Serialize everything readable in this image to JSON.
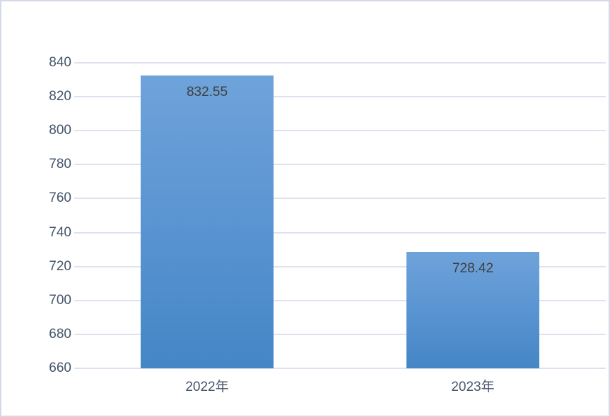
{
  "window": {
    "background_color": "#ffffff",
    "border_color": "#d3dae6"
  },
  "colors": {
    "bar_gradient_top": "#6fa3da",
    "bar_gradient_mid": "#5a94d2",
    "bar_gradient_bottom": "#4586c6",
    "gridline": "#dde2ee",
    "axis_label": "#44546a",
    "value_label": "#404040"
  },
  "chart_data": {
    "type": "bar",
    "categories": [
      "2022年",
      "2023年"
    ],
    "values": [
      832.55,
      728.42
    ],
    "value_labels": [
      "832.55",
      "728.42"
    ],
    "title": "",
    "xlabel": "",
    "ylabel": "",
    "ylim": [
      660,
      840
    ],
    "ytick_step": 20,
    "yticks": [
      840,
      820,
      800,
      780,
      760,
      740,
      720,
      700,
      680,
      660
    ],
    "grid": true,
    "legend": false,
    "bar_slot_fill_ratio": 0.5,
    "data_label_position": "inside-end"
  }
}
